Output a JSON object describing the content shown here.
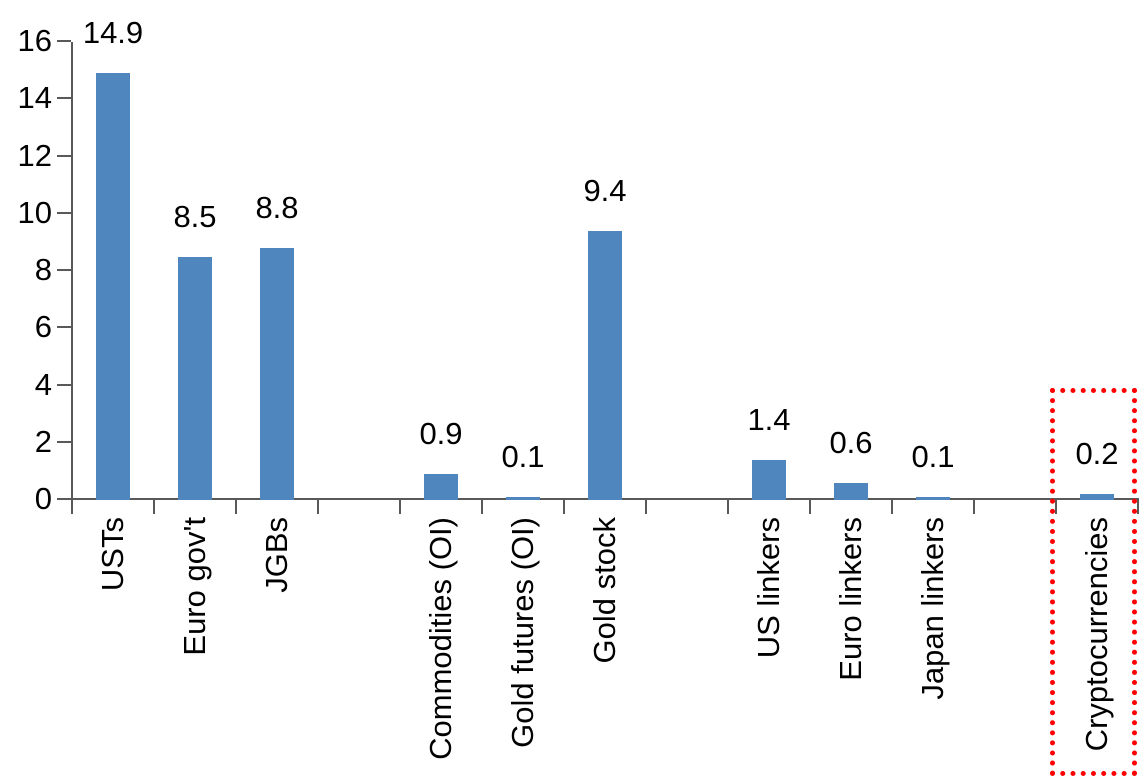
{
  "chart_data": {
    "type": "bar",
    "title": "",
    "xlabel": "",
    "ylabel": "",
    "ylim": [
      0,
      16
    ],
    "ytick_step": 2,
    "yticks": [
      0,
      2,
      4,
      6,
      8,
      10,
      12,
      14,
      16
    ],
    "ytick_labels": [
      "0",
      "2",
      "4",
      "6",
      "8",
      "10",
      "12",
      "14",
      "16"
    ],
    "grid": false,
    "legend": false,
    "n_slots": 13,
    "bar_color": "#4E86BD",
    "axis_color": "#595959",
    "text_color": "#000000",
    "categories": [
      "USTs",
      "Euro gov't",
      "JGBs",
      "Commodities (OI)",
      "Gold futures (OI)",
      "Gold stock",
      "US linkers",
      "Euro linkers",
      "Japan linkers",
      "Cryptocurrencies"
    ],
    "values": [
      14.9,
      8.5,
      8.8,
      0.9,
      0.1,
      9.4,
      1.4,
      0.6,
      0.1,
      0.2
    ],
    "bars": [
      {
        "label": "USTs",
        "value": 14.9,
        "value_label": "14.9",
        "slot": 0
      },
      {
        "label": "Euro gov't",
        "value": 8.5,
        "value_label": "8.5",
        "slot": 1
      },
      {
        "label": "JGBs",
        "value": 8.8,
        "value_label": "8.8",
        "slot": 2
      },
      {
        "label": "Commodities (OI)",
        "value": 0.9,
        "value_label": "0.9",
        "slot": 4
      },
      {
        "label": "Gold futures (OI)",
        "value": 0.1,
        "value_label": "0.1",
        "slot": 5
      },
      {
        "label": "Gold stock",
        "value": 9.4,
        "value_label": "9.4",
        "slot": 6
      },
      {
        "label": "US linkers",
        "value": 1.4,
        "value_label": "1.4",
        "slot": 8
      },
      {
        "label": "Euro linkers",
        "value": 0.6,
        "value_label": "0.6",
        "slot": 9
      },
      {
        "label": "Japan linkers",
        "value": 0.1,
        "value_label": "0.1",
        "slot": 10
      },
      {
        "label": "Cryptocurrencies",
        "value": 0.2,
        "value_label": "0.2",
        "slot": 12
      }
    ],
    "highlight": {
      "label": "Cryptocurrencies",
      "slot": 12,
      "box_color": "#FF0000",
      "box_style": "dotted"
    }
  }
}
